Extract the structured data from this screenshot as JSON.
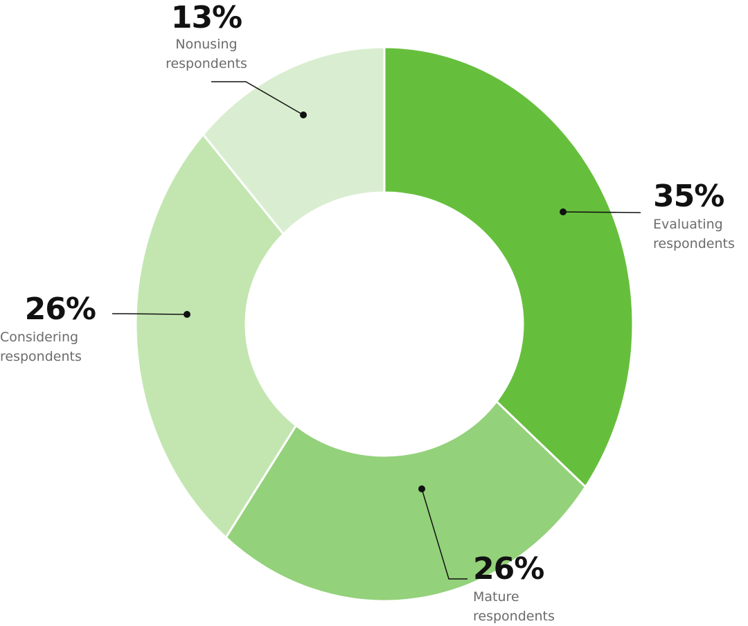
{
  "chart_data": {
    "type": "pie",
    "donut": true,
    "start": "top, clockwise",
    "slices": [
      {
        "label": "Evaluating respondents",
        "line1": "Evaluating",
        "line2": "respondents",
        "value": 35,
        "pct_label": "35%",
        "color": "#66bf3c"
      },
      {
        "label": "Mature respondents",
        "line1": "Mature",
        "line2": "respondents",
        "value": 26,
        "pct_label": "26%",
        "color": "#93d17a"
      },
      {
        "label": "Considering respondents",
        "line1": "Considering",
        "line2": "respondents",
        "value": 26,
        "pct_label": "26%",
        "color": "#c3e6b1"
      },
      {
        "label": "Nonusing respondents",
        "line1": "Nonusing",
        "line2": "respondents",
        "value": 13,
        "pct_label": "13%",
        "color": "#d9eed0"
      }
    ]
  }
}
